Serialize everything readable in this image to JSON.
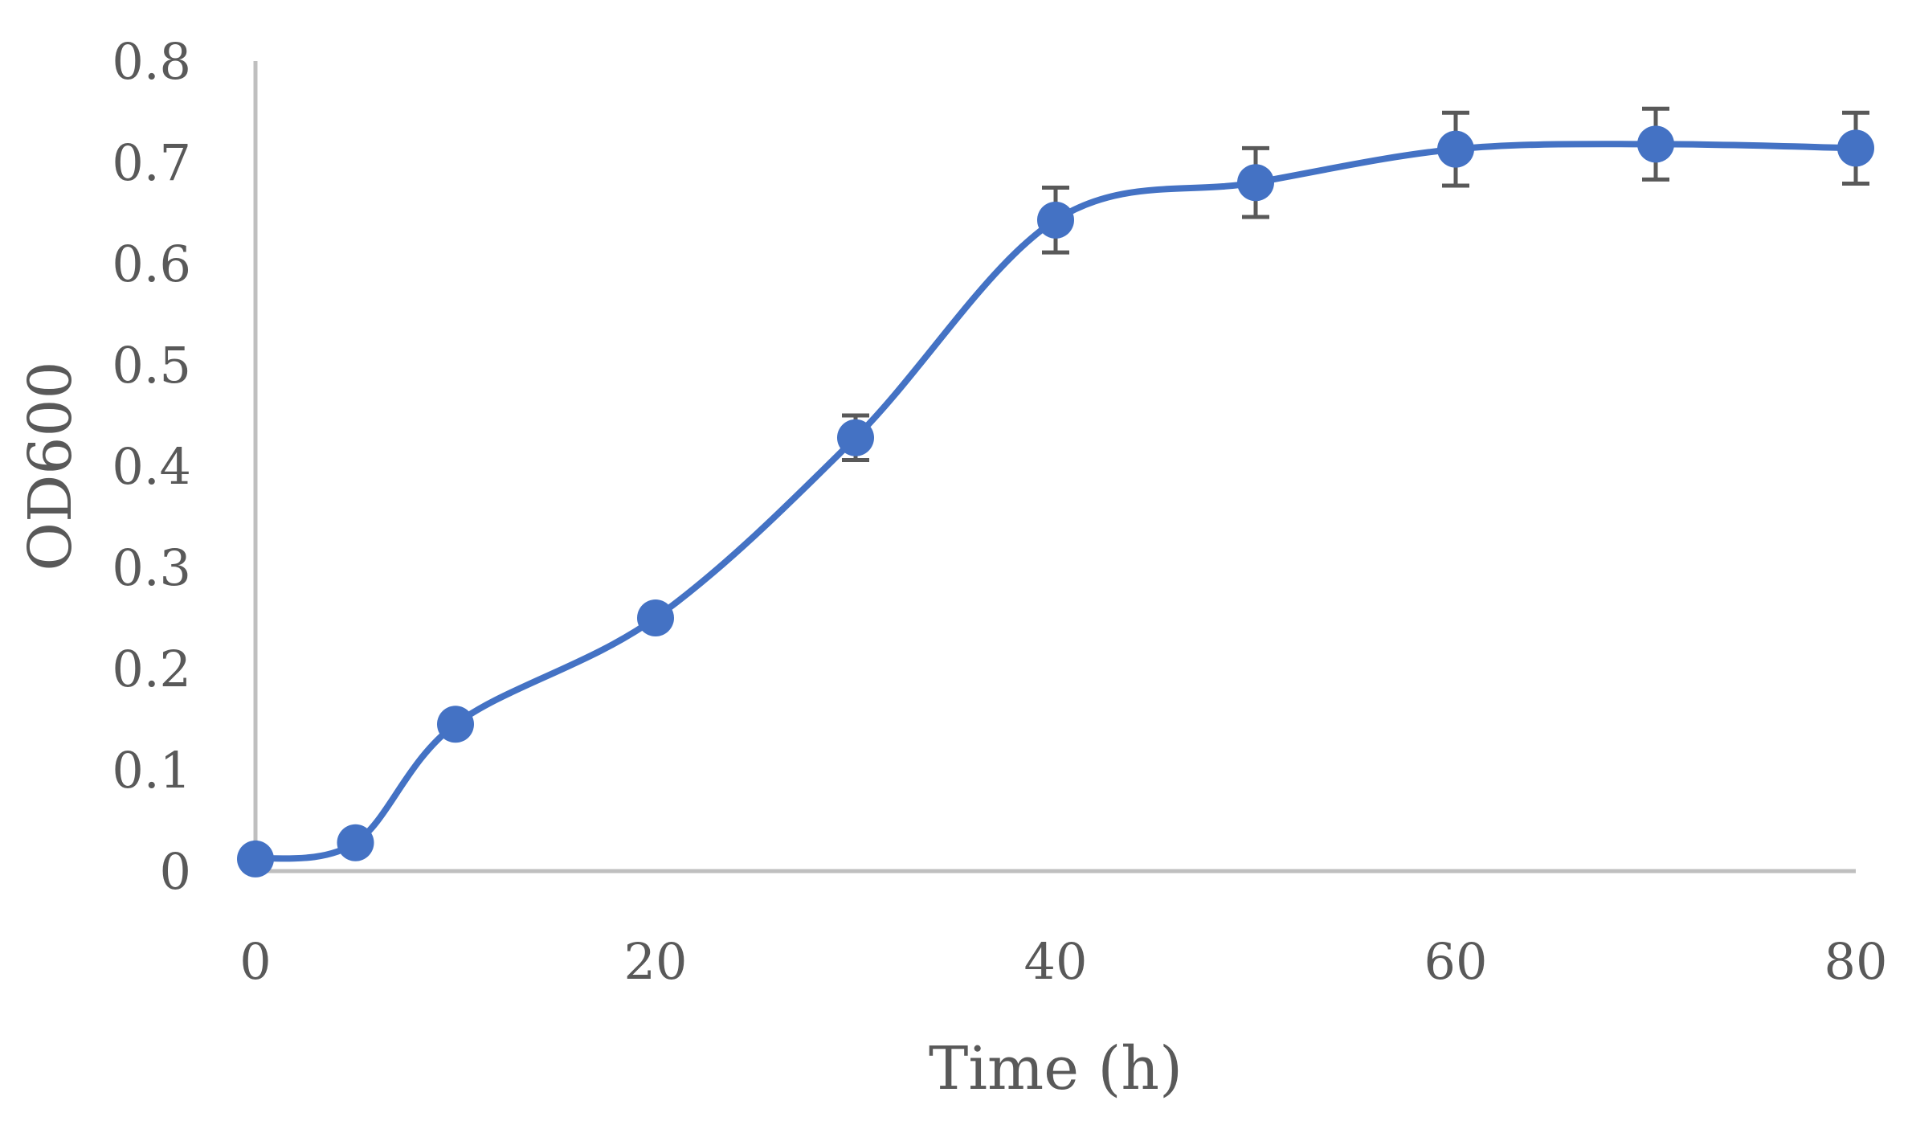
{
  "chart_data": {
    "type": "line",
    "title": "",
    "xlabel": "Time (h)",
    "ylabel": "OD600",
    "xlim": [
      0,
      80
    ],
    "ylim": [
      0,
      0.8
    ],
    "x_ticks": [
      0,
      20,
      40,
      60,
      80
    ],
    "y_ticks": [
      0,
      0.1,
      0.2,
      0.3,
      0.4,
      0.5,
      0.6,
      0.7,
      0.8
    ],
    "x_tick_labels": [
      "0",
      "20",
      "40",
      "60",
      "80"
    ],
    "y_tick_labels": [
      "0",
      "0.1",
      "0.2",
      "0.3",
      "0.4",
      "0.5",
      "0.6",
      "0.7",
      "0.8"
    ],
    "grid": false,
    "legend": "none",
    "smooth": true,
    "series": [
      {
        "x": [
          0,
          5,
          10,
          20,
          30,
          40,
          50,
          60,
          70,
          80
        ],
        "y": [
          0.012,
          0.028,
          0.145,
          0.25,
          0.428,
          0.643,
          0.68,
          0.713,
          0.718,
          0.714
        ],
        "error": [
          0,
          0,
          0,
          0,
          0.022,
          0.032,
          0.034,
          0.036,
          0.035,
          0.035
        ],
        "color": "#4472C4",
        "error_color": "#595959"
      }
    ],
    "colors": {
      "axis": "#BFBFBF",
      "text": "#595959"
    }
  }
}
